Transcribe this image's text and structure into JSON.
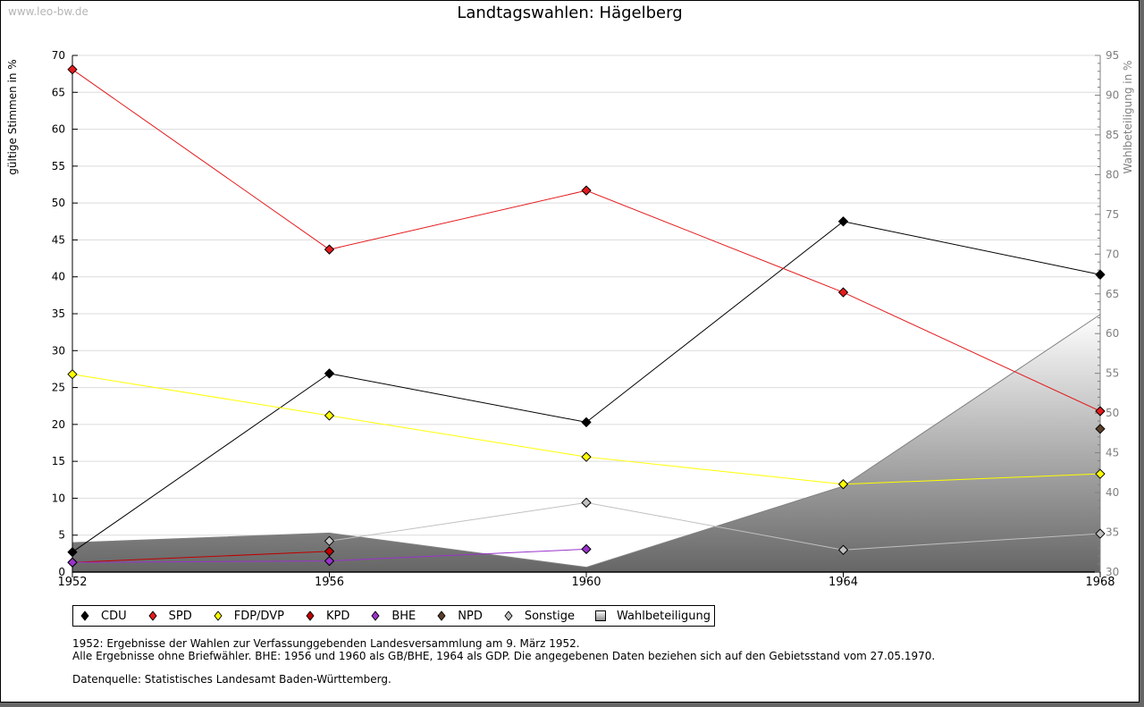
{
  "watermark": "www.leo-bw.de",
  "chart_data": {
    "type": "line",
    "title": "Landtagswahlen: Hägelberg",
    "x": [
      1952,
      1956,
      1960,
      1964,
      1968
    ],
    "xlabel": "",
    "ylabel": "gültige Stimmen in %",
    "ylabel_right": "Wahlbeteiligung in %",
    "ylim": [
      0,
      70
    ],
    "ylim_right": [
      30,
      95
    ],
    "yticks": [
      0,
      5,
      10,
      15,
      20,
      25,
      30,
      35,
      40,
      45,
      50,
      55,
      60,
      65,
      70
    ],
    "yticks_right": [
      30,
      35,
      40,
      45,
      50,
      55,
      60,
      65,
      70,
      75,
      80,
      85,
      90,
      95
    ],
    "grid": true,
    "legend_position": "bottom-left",
    "series": [
      {
        "name": "CDU",
        "color": "#000000",
        "values": [
          2.7,
          26.9,
          20.3,
          47.5,
          40.3
        ]
      },
      {
        "name": "SPD",
        "color": "#e41a1c",
        "values": [
          68.1,
          43.7,
          51.7,
          37.9,
          21.8
        ]
      },
      {
        "name": "FDP/DVP",
        "color": "#ffff00",
        "values": [
          26.8,
          21.2,
          15.6,
          11.9,
          13.3
        ]
      },
      {
        "name": "KPD",
        "color": "#c00000",
        "values": [
          1.3,
          2.8,
          null,
          null,
          null
        ]
      },
      {
        "name": "BHE",
        "color": "#9933cc",
        "values": [
          1.3,
          1.5,
          3.1,
          null,
          null
        ]
      },
      {
        "name": "NPD",
        "color": "#5a3e2b",
        "values": [
          null,
          null,
          null,
          null,
          19.4
        ]
      },
      {
        "name": "Sonstige",
        "color": "#c0c0c0",
        "values": [
          null,
          4.2,
          9.4,
          3.0,
          5.2
        ]
      }
    ],
    "area_series": {
      "name": "Wahlbeteiligung",
      "axis": "right",
      "values": [
        33.7,
        34.9,
        30.6,
        40.8,
        62.4
      ]
    }
  },
  "notes": {
    "line1": "1952: Ergebnisse der Wahlen zur Verfassunggebenden Landesversammlung am 9. März 1952.",
    "line2": "Alle Ergebnisse ohne Briefwähler. BHE: 1956 und 1960 als GB/BHE, 1964 als GDP. Die angegebenen Daten beziehen sich auf den Gebietsstand vom 27.05.1970.",
    "source": "Datenquelle: Statistisches Landesamt Baden-Württemberg."
  }
}
